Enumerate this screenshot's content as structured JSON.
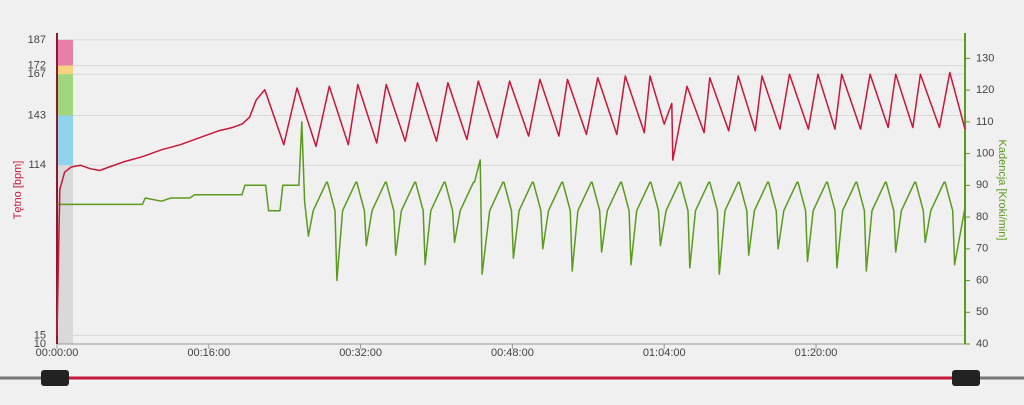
{
  "chart_data": {
    "type": "line",
    "y_label": "Tętno [bpm]",
    "y2_label": "Kadencja [Kroki/min]",
    "xlim": [
      0,
      95.7
    ],
    "xticks": [
      {
        "value": 0,
        "label": "00:00:00"
      },
      {
        "value": 16,
        "label": "00:16:00"
      },
      {
        "value": 32,
        "label": "00:32:00"
      },
      {
        "value": 48,
        "label": "00:48:00"
      },
      {
        "value": 64,
        "label": "01:04:00"
      },
      {
        "value": 80,
        "label": "01:20:00"
      }
    ],
    "ylim": [
      10,
      191
    ],
    "yticks": [
      10,
      15,
      114,
      143,
      167,
      172,
      187
    ],
    "y2lim": [
      40,
      138
    ],
    "y2ticks": [
      40,
      50,
      60,
      70,
      80,
      90,
      100,
      110,
      120,
      130
    ],
    "grid": true,
    "zones": [
      {
        "from": 172,
        "to": 187,
        "color": "#e87fa8"
      },
      {
        "from": 167,
        "to": 172,
        "color": "#f7d37e"
      },
      {
        "from": 143,
        "to": 167,
        "color": "#9fd67e"
      },
      {
        "from": 114,
        "to": 143,
        "color": "#8fd3ec"
      },
      {
        "from": 10,
        "to": 114,
        "color": "#d9d9d9"
      }
    ],
    "series": [
      {
        "color": "#c8173a",
        "x": [
          0,
          0.3,
          0.8,
          1.5,
          2.5,
          3.5,
          4.5,
          5.5,
          7,
          9,
          11,
          13,
          15,
          17,
          18.5,
          19.5,
          20.3,
          21.0,
          21.9,
          23.9,
          25.3,
          27.3,
          28.7,
          30.7,
          31.7,
          33.7,
          34.7,
          36.7,
          38.0,
          40.0,
          41.2,
          43.2,
          44.4,
          46.4,
          47.7,
          49.7,
          50.9,
          52.9,
          53.8,
          55.8,
          57.0,
          59.0,
          59.9,
          61.9,
          62.5,
          64.0,
          64.8,
          64.9,
          66.4,
          68.2,
          68.8,
          70.8,
          71.8,
          73.6,
          74.3,
          76.2,
          77.2,
          79.2,
          80.2,
          82.0,
          82.7,
          84.7,
          85.7,
          87.6,
          88.4,
          90.2,
          91.0,
          93.0,
          94.1,
          95.7
        ],
        "values": [
          15,
          100,
          110,
          113,
          114,
          112,
          111,
          113,
          116,
          119,
          123,
          126,
          130,
          134,
          136,
          138,
          142,
          152,
          158,
          126,
          159,
          125,
          160,
          126,
          161,
          127,
          161,
          128,
          162,
          128,
          162,
          129,
          163,
          130,
          163,
          131,
          164,
          131,
          164,
          132,
          165,
          132,
          166,
          133,
          166,
          138,
          150,
          117,
          160,
          133,
          165,
          134,
          166,
          134,
          166,
          135,
          167,
          135,
          167,
          135,
          167,
          135,
          167,
          136,
          167,
          136,
          167,
          136,
          168,
          135
        ]
      },
      {
        "color": "#5a9a1e",
        "axis": "y2",
        "x": [
          0,
          9,
          9.3,
          11,
          12,
          14,
          14.5,
          19.5,
          19.8,
          22,
          22.3,
          23.5,
          23.8,
          25.5,
          25.8,
          26.1,
          26.5,
          27,
          28.4,
          28.5,
          29.3,
          29.5,
          30.1,
          31.5,
          31.6,
          32.4,
          32.6,
          33.2,
          34.6,
          34.7,
          35.5,
          35.7,
          36.3,
          37.7,
          37.8,
          38.6,
          38.8,
          39.4,
          40.8,
          40.9,
          41.7,
          41.9,
          42.5,
          43.9,
          44.0,
          44.6,
          44.8,
          45.6,
          47.0,
          47.1,
          47.9,
          48.1,
          48.7,
          50.1,
          50.2,
          51.0,
          51.2,
          51.8,
          53.2,
          53.3,
          54.1,
          54.3,
          54.9,
          56.3,
          56.4,
          57.2,
          57.4,
          58.0,
          59.4,
          59.5,
          60.3,
          60.5,
          61.1,
          62.5,
          62.6,
          63.4,
          63.6,
          64.2,
          65.6,
          65.7,
          66.5,
          66.7,
          67.3,
          68.7,
          68.8,
          69.6,
          69.8,
          70.4,
          71.8,
          71.9,
          72.7,
          72.9,
          73.5,
          74.9,
          75.0,
          75.8,
          76.0,
          76.6,
          78.0,
          78.1,
          78.9,
          79.1,
          79.7,
          81.1,
          81.2,
          82.0,
          82.2,
          82.8,
          84.2,
          84.3,
          85.1,
          85.3,
          85.9,
          87.3,
          87.4,
          88.2,
          88.4,
          89.0,
          90.4,
          90.5,
          91.3,
          91.5,
          92.1,
          93.5,
          93.6,
          94.4,
          94.6,
          95.7
        ],
        "values": [
          84,
          84,
          86,
          85,
          86,
          86,
          87,
          87,
          90,
          90,
          82,
          82,
          90,
          90,
          110,
          85,
          74,
          82,
          91,
          91,
          82,
          60,
          82,
          91,
          91,
          82,
          71,
          82,
          91,
          91,
          82,
          68,
          82,
          91,
          91,
          82,
          65,
          82,
          91,
          91,
          82,
          72,
          82,
          91,
          91,
          98,
          62,
          82,
          91,
          91,
          82,
          67,
          82,
          91,
          91,
          82,
          70,
          82,
          91,
          91,
          82,
          63,
          82,
          91,
          91,
          82,
          69,
          82,
          91,
          91,
          82,
          65,
          82,
          91,
          91,
          82,
          71,
          82,
          91,
          91,
          82,
          64,
          82,
          91,
          91,
          82,
          62,
          82,
          91,
          91,
          82,
          68,
          82,
          91,
          91,
          82,
          70,
          82,
          91,
          91,
          82,
          66,
          82,
          91,
          91,
          82,
          64,
          82,
          91,
          91,
          82,
          63,
          82,
          91,
          91,
          82,
          69,
          82,
          91,
          91,
          82,
          72,
          82,
          91,
          91,
          82,
          65,
          83
        ]
      }
    ]
  }
}
